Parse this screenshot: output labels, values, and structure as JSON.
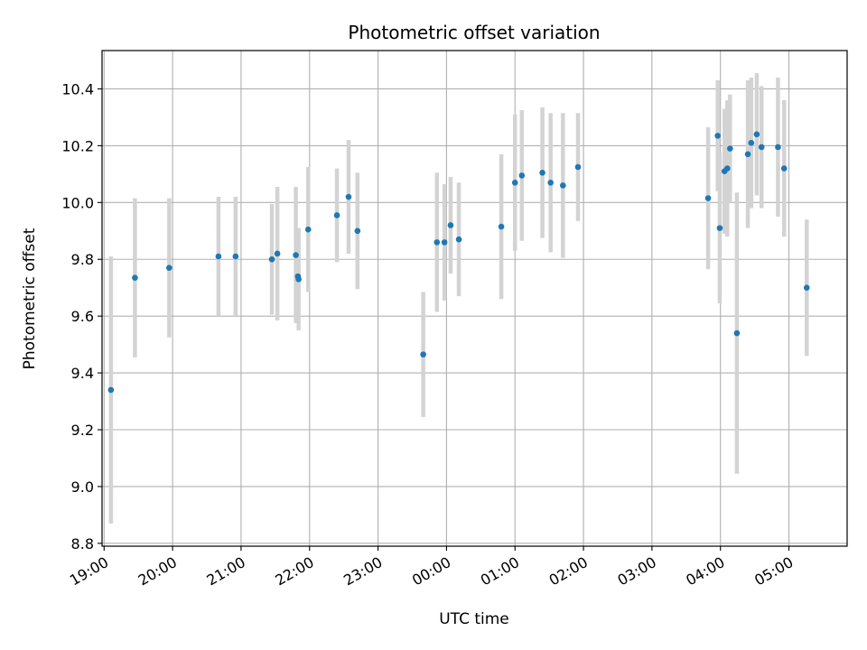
{
  "chart_data": {
    "type": "scatter",
    "title": "Photometric offset variation",
    "xlabel": "UTC time",
    "ylabel": "Photometric offset",
    "x_unit": "hours (UTC, continuing past midnight)",
    "xlim": [
      18.97,
      29.85
    ],
    "ylim": [
      8.79,
      10.535
    ],
    "grid": true,
    "x_ticks": [
      {
        "value": 19,
        "label": "19:00"
      },
      {
        "value": 20,
        "label": "20:00"
      },
      {
        "value": 21,
        "label": "21:00"
      },
      {
        "value": 22,
        "label": "22:00"
      },
      {
        "value": 23,
        "label": "23:00"
      },
      {
        "value": 24,
        "label": "00:00"
      },
      {
        "value": 25,
        "label": "01:00"
      },
      {
        "value": 26,
        "label": "02:00"
      },
      {
        "value": 27,
        "label": "03:00"
      },
      {
        "value": 28,
        "label": "04:00"
      },
      {
        "value": 29,
        "label": "05:00"
      }
    ],
    "y_ticks": [
      {
        "value": 8.8,
        "label": "8.8"
      },
      {
        "value": 9.0,
        "label": "9.0"
      },
      {
        "value": 9.2,
        "label": "9.2"
      },
      {
        "value": 9.4,
        "label": "9.4"
      },
      {
        "value": 9.6,
        "label": "9.6"
      },
      {
        "value": 9.8,
        "label": "9.8"
      },
      {
        "value": 10.0,
        "label": "10.0"
      },
      {
        "value": 10.2,
        "label": "10.2"
      },
      {
        "value": 10.4,
        "label": "10.4"
      }
    ],
    "colors": {
      "points": "#1f77b4",
      "errorbars": "#d3d3d3",
      "grid": "#b0b0b0"
    },
    "points": [
      {
        "x": 19.1,
        "y": 9.34,
        "err": 0.47
      },
      {
        "x": 19.45,
        "y": 9.735,
        "err": 0.28
      },
      {
        "x": 19.95,
        "y": 9.77,
        "err": 0.245
      },
      {
        "x": 20.67,
        "y": 9.81,
        "err": 0.21
      },
      {
        "x": 20.92,
        "y": 9.81,
        "err": 0.21
      },
      {
        "x": 21.45,
        "y": 9.8,
        "err": 0.195
      },
      {
        "x": 21.53,
        "y": 9.82,
        "err": 0.235
      },
      {
        "x": 21.8,
        "y": 9.815,
        "err": 0.24
      },
      {
        "x": 21.83,
        "y": 9.74,
        "err": 0.165
      },
      {
        "x": 21.84,
        "y": 9.73,
        "err": 0.18
      },
      {
        "x": 21.98,
        "y": 9.905,
        "err": 0.22
      },
      {
        "x": 22.4,
        "y": 9.955,
        "err": 0.165
      },
      {
        "x": 22.57,
        "y": 10.02,
        "err": 0.2
      },
      {
        "x": 22.7,
        "y": 9.9,
        "err": 0.205
      },
      {
        "x": 23.66,
        "y": 9.465,
        "err": 0.22
      },
      {
        "x": 23.86,
        "y": 9.86,
        "err": 0.245
      },
      {
        "x": 23.97,
        "y": 9.86,
        "err": 0.205
      },
      {
        "x": 24.06,
        "y": 9.92,
        "err": 0.17
      },
      {
        "x": 24.18,
        "y": 9.87,
        "err": 0.2
      },
      {
        "x": 24.8,
        "y": 9.915,
        "err": 0.255
      },
      {
        "x": 25.0,
        "y": 10.07,
        "err": 0.24
      },
      {
        "x": 25.1,
        "y": 10.095,
        "err": 0.23
      },
      {
        "x": 25.4,
        "y": 10.105,
        "err": 0.23
      },
      {
        "x": 25.52,
        "y": 10.07,
        "err": 0.245
      },
      {
        "x": 25.7,
        "y": 10.06,
        "err": 0.255
      },
      {
        "x": 25.92,
        "y": 10.125,
        "err": 0.19
      },
      {
        "x": 27.82,
        "y": 10.015,
        "err": 0.25
      },
      {
        "x": 27.96,
        "y": 10.235,
        "err": 0.195
      },
      {
        "x": 27.99,
        "y": 9.91,
        "err": 0.265
      },
      {
        "x": 28.06,
        "y": 10.11,
        "err": 0.22
      },
      {
        "x": 28.1,
        "y": 10.12,
        "err": 0.24
      },
      {
        "x": 28.14,
        "y": 10.19,
        "err": 0.19
      },
      {
        "x": 28.24,
        "y": 9.54,
        "err": 0.495
      },
      {
        "x": 28.4,
        "y": 10.17,
        "err": 0.26
      },
      {
        "x": 28.45,
        "y": 10.21,
        "err": 0.23
      },
      {
        "x": 28.53,
        "y": 10.24,
        "err": 0.215
      },
      {
        "x": 28.6,
        "y": 10.195,
        "err": 0.215
      },
      {
        "x": 28.84,
        "y": 10.195,
        "err": 0.245
      },
      {
        "x": 28.93,
        "y": 10.12,
        "err": 0.24
      },
      {
        "x": 29.26,
        "y": 9.7,
        "err": 0.24
      }
    ]
  }
}
